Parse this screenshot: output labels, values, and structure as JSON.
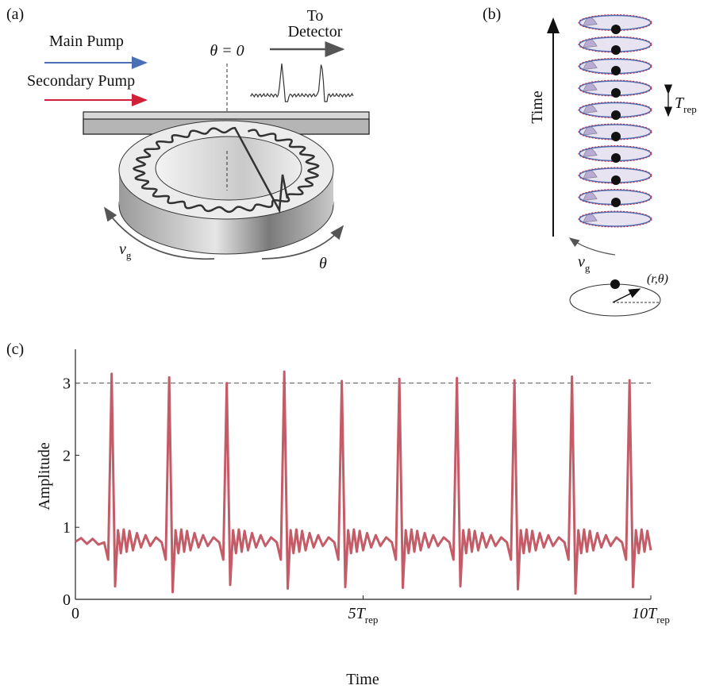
{
  "panels": {
    "a": {
      "label": "(a)",
      "main_pump": "Main Pump",
      "secondary_pump": "Secondary Pump",
      "theta_zero": "θ = 0",
      "to_detector": [
        "To",
        "Detector"
      ],
      "group_velocity": {
        "symbol": "v",
        "sub": "g"
      },
      "angle": "θ"
    },
    "b": {
      "label": "(b)",
      "time": "Time",
      "period": {
        "symbol": "T",
        "sub": "rep"
      },
      "group_velocity": {
        "symbol": "v",
        "sub": "g"
      },
      "polar": "(r,θ)"
    }
  },
  "chart_data": {
    "type": "line",
    "panel_label": "(c)",
    "xlabel": "Time",
    "ylabel": "Amplitude",
    "color": "#c45c68",
    "xlim": [
      0,
      10
    ],
    "ylim": [
      0,
      3.47
    ],
    "xticks": [
      0,
      {
        "value": 5,
        "label": "5T",
        "sub": "rep"
      },
      {
        "value": 10,
        "label": "10T",
        "sub": "rep"
      }
    ],
    "yticks": [
      0,
      1,
      2,
      3
    ],
    "reference_line": 3,
    "x": [
      0,
      0.1,
      0.2,
      0.3,
      0.4,
      0.5,
      0.57,
      0.63,
      0.69,
      0.74,
      0.79,
      0.84,
      0.89,
      0.94,
      1.0,
      1.07,
      1.14,
      1.22,
      1.3,
      1.4,
      1.5,
      1.57,
      1.63,
      1.69,
      1.74,
      1.79,
      1.84,
      1.89,
      1.94,
      2.0,
      2.07,
      2.14,
      2.22,
      2.3,
      2.4,
      2.5,
      2.57,
      2.63,
      2.69,
      2.74,
      2.79,
      2.84,
      2.89,
      2.94,
      3.0,
      3.07,
      3.14,
      3.22,
      3.3,
      3.4,
      3.5,
      3.57,
      3.63,
      3.69,
      3.74,
      3.79,
      3.84,
      3.89,
      3.94,
      4.0,
      4.07,
      4.14,
      4.22,
      4.3,
      4.4,
      4.5,
      4.57,
      4.63,
      4.69,
      4.74,
      4.79,
      4.84,
      4.89,
      4.94,
      5.0,
      5.07,
      5.14,
      5.22,
      5.3,
      5.4,
      5.5,
      5.57,
      5.63,
      5.69,
      5.74,
      5.79,
      5.84,
      5.89,
      5.94,
      6.0,
      6.07,
      6.14,
      6.22,
      6.3,
      6.4,
      6.5,
      6.57,
      6.63,
      6.69,
      6.74,
      6.79,
      6.84,
      6.89,
      6.94,
      7.0,
      7.07,
      7.14,
      7.22,
      7.3,
      7.4,
      7.5,
      7.57,
      7.63,
      7.69,
      7.74,
      7.79,
      7.84,
      7.89,
      7.94,
      8.0,
      8.07,
      8.14,
      8.22,
      8.3,
      8.4,
      8.5,
      8.57,
      8.63,
      8.69,
      8.74,
      8.79,
      8.84,
      8.89,
      8.94,
      9.0,
      9.07,
      9.14,
      9.22,
      9.3,
      9.4,
      9.5,
      9.57,
      9.63,
      9.69,
      9.74,
      9.79,
      9.84,
      9.89,
      9.94,
      10.0
    ],
    "values": [
      0.8,
      0.85,
      0.77,
      0.84,
      0.76,
      0.79,
      0.55,
      3.13,
      0.18,
      0.96,
      0.64,
      0.97,
      0.66,
      0.95,
      0.68,
      0.92,
      0.72,
      0.89,
      0.74,
      0.86,
      0.79,
      0.55,
      3.08,
      0.1,
      0.96,
      0.64,
      0.97,
      0.66,
      0.95,
      0.68,
      0.92,
      0.72,
      0.89,
      0.74,
      0.86,
      0.79,
      0.55,
      3.0,
      0.2,
      0.96,
      0.64,
      0.97,
      0.66,
      0.95,
      0.68,
      0.92,
      0.72,
      0.89,
      0.74,
      0.86,
      0.79,
      0.55,
      3.16,
      0.15,
      0.96,
      0.64,
      0.97,
      0.66,
      0.95,
      0.68,
      0.92,
      0.72,
      0.89,
      0.74,
      0.86,
      0.79,
      0.55,
      3.03,
      0.17,
      0.96,
      0.64,
      0.97,
      0.66,
      0.95,
      0.68,
      0.92,
      0.72,
      0.89,
      0.74,
      0.86,
      0.79,
      0.55,
      3.06,
      0.16,
      0.96,
      0.64,
      0.97,
      0.66,
      0.95,
      0.68,
      0.92,
      0.72,
      0.89,
      0.74,
      0.86,
      0.79,
      0.55,
      3.07,
      0.18,
      0.96,
      0.64,
      0.97,
      0.66,
      0.95,
      0.68,
      0.92,
      0.72,
      0.89,
      0.74,
      0.86,
      0.79,
      0.55,
      3.04,
      0.14,
      0.96,
      0.64,
      0.97,
      0.66,
      0.95,
      0.68,
      0.92,
      0.72,
      0.89,
      0.74,
      0.86,
      0.79,
      0.55,
      3.09,
      0.08,
      0.96,
      0.64,
      0.97,
      0.66,
      0.95,
      0.68,
      0.92,
      0.72,
      0.89,
      0.74,
      0.86,
      0.79,
      0.55,
      3.04,
      0.17,
      0.96,
      0.64,
      0.97,
      0.66,
      0.95,
      0.68
    ]
  }
}
